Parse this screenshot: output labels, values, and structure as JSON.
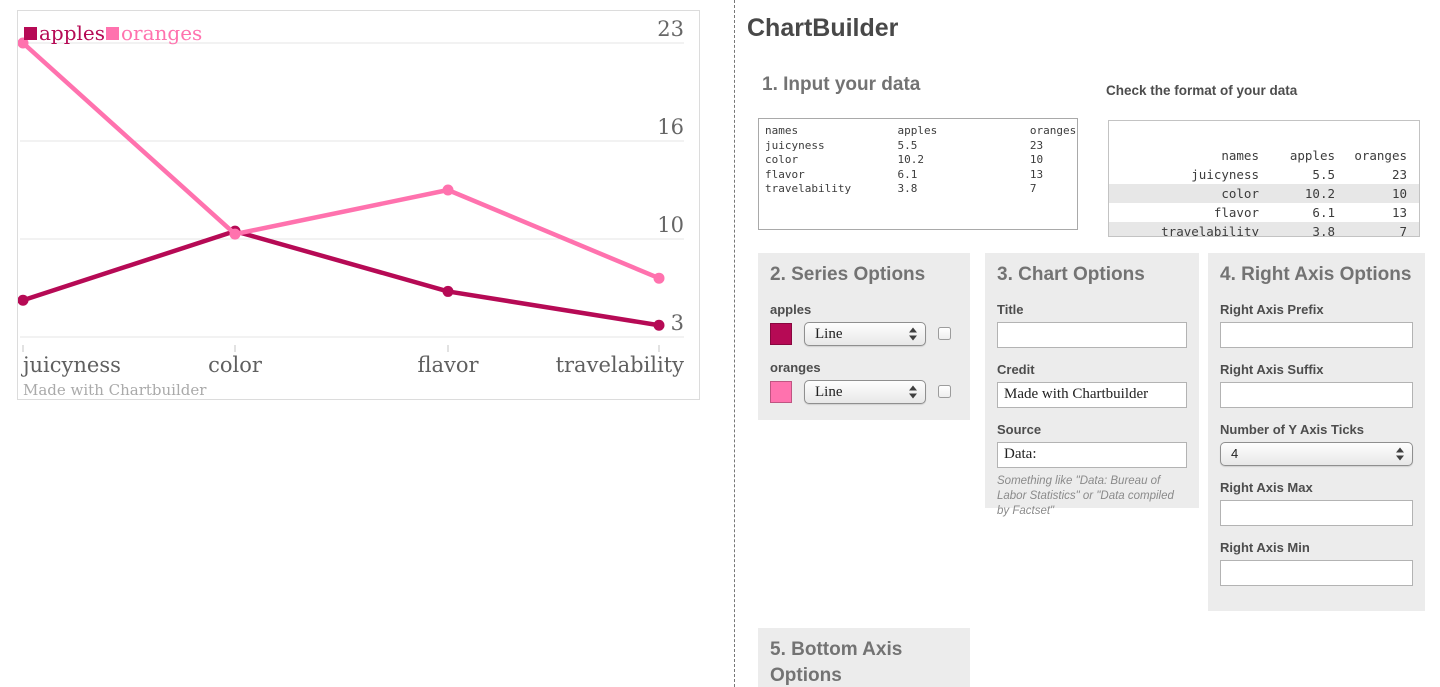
{
  "app": {
    "title": "ChartBuilder"
  },
  "chart_data": {
    "type": "line",
    "categories": [
      "juicyness",
      "color",
      "flavor",
      "travelability"
    ],
    "series": [
      {
        "name": "apples",
        "values": [
          5.5,
          10.2,
          6.1,
          3.8
        ],
        "color": "#b60a55"
      },
      {
        "name": "oranges",
        "values": [
          23,
          10,
          13,
          7
        ],
        "color": "#ff72ae"
      }
    ],
    "y_ticks": [
      23,
      16,
      10,
      3
    ],
    "ylim": [
      3,
      23
    ],
    "grid": true,
    "legend_position": "top-left",
    "credit": "Made with Chartbuilder",
    "title": ""
  },
  "input_section": {
    "heading": "1. Input your data",
    "textarea_value": "names               apples              oranges\njuicyness           5.5                 23\ncolor               10.2                10\nflavor              6.1                 13\ntravelability       3.8                 7",
    "format_check": {
      "heading": "Check the format of your data",
      "columns": [
        "names",
        "apples",
        "oranges"
      ],
      "rows": [
        [
          "juicyness",
          "5.5",
          "23"
        ],
        [
          "color",
          "10.2",
          "10"
        ],
        [
          "flavor",
          "6.1",
          "13"
        ],
        [
          "travelability",
          "3.8",
          "7"
        ]
      ]
    }
  },
  "series_options": {
    "heading": "2. Series Options",
    "series": [
      {
        "label": "apples",
        "color": "#b60a55",
        "type": "Line"
      },
      {
        "label": "oranges",
        "color": "#ff72ae",
        "type": "Line"
      }
    ]
  },
  "chart_options": {
    "heading": "3. Chart Options",
    "title_label": "Title",
    "title_value": "",
    "credit_label": "Credit",
    "credit_value": "Made with Chartbuilder",
    "source_label": "Source",
    "source_value": "Data:",
    "source_hint": "Something like \"Data: Bureau of Labor Statistics\" or \"Data compiled by Factset\""
  },
  "right_axis_options": {
    "heading": "4. Right Axis Options",
    "prefix_label": "Right Axis Prefix",
    "prefix_value": "",
    "suffix_label": "Right Axis Suffix",
    "suffix_value": "",
    "ticks_label": "Number of Y Axis Ticks",
    "ticks_value": "4",
    "max_label": "Right Axis Max",
    "max_value": "",
    "min_label": "Right Axis Min",
    "min_value": ""
  },
  "bottom_axis_options": {
    "heading": "5. Bottom Axis Options"
  }
}
